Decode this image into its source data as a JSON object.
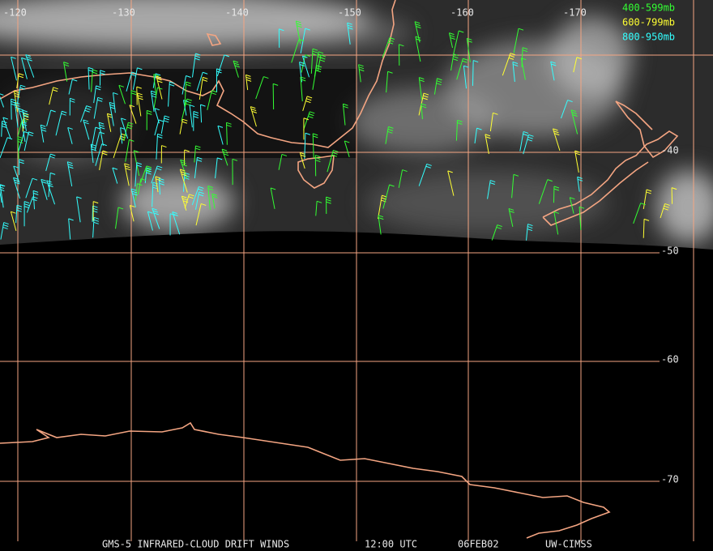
{
  "map": {
    "lon_labels": [
      "-120",
      "-130",
      "-140",
      "-150",
      "-160",
      "-170"
    ],
    "lat_labels": [
      "-40",
      "-50",
      "-60",
      "-70"
    ],
    "legend": [
      {
        "label": "400-599mb",
        "color": "#33ff33"
      },
      {
        "label": "600-799mb",
        "color": "#ffff33"
      },
      {
        "label": "800-950mb",
        "color": "#33ffff"
      }
    ],
    "footer": [
      "GMS-5 INFRARED-CLOUD DRIFT WINDS",
      "12:00 UTC",
      "06FEB02",
      "UW-CIMSS"
    ]
  }
}
